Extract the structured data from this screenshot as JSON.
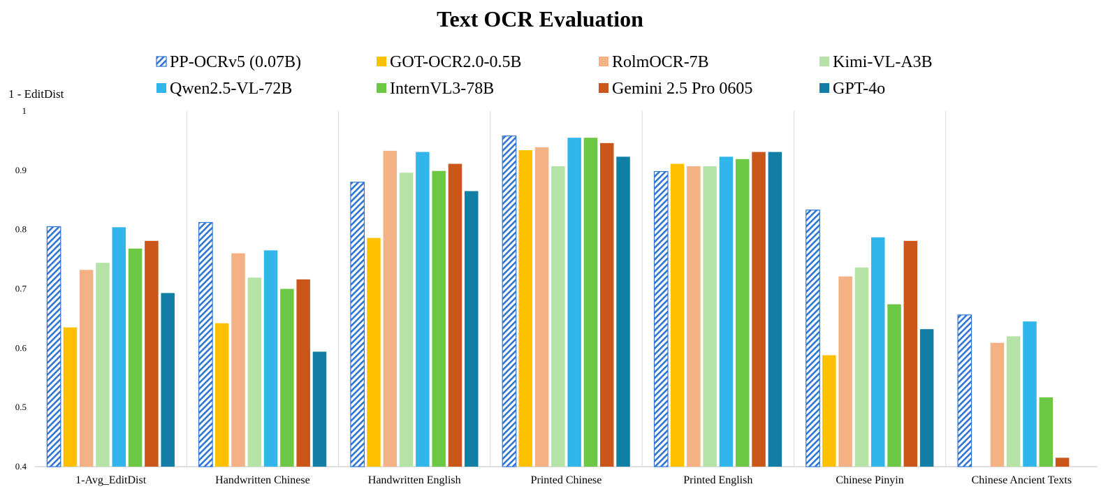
{
  "chart_data": {
    "type": "bar",
    "title": "Text OCR Evaluation",
    "ylabel": "1 - EditDist",
    "xlabel": "",
    "ylim": [
      0.4,
      1.0
    ],
    "yticks": [
      "0.4",
      "0.5",
      "0.6",
      "0.7",
      "0.8",
      "0.9",
      "1"
    ],
    "categories": [
      "1-Avg_EditDist",
      "Handwritten Chinese",
      "Handwritten English",
      "Printed Chinese",
      "Printed English",
      "Chinese Pinyin",
      "Chinese Ancient Texts"
    ],
    "legend_position": "top",
    "series": [
      {
        "name": "PP-OCRv5 (0.07B)",
        "color": "#2e75d6",
        "pattern": "hatch",
        "values": [
          0.805,
          0.812,
          0.88,
          0.958,
          0.898,
          0.833,
          0.656
        ]
      },
      {
        "name": "GOT-OCR2.0-0.5B",
        "color": "#ffc000",
        "values": [
          0.635,
          0.642,
          0.786,
          0.934,
          0.911,
          0.588,
          null
        ]
      },
      {
        "name": "RolmOCR-7B",
        "color": "#f4b183",
        "values": [
          0.732,
          0.76,
          0.933,
          0.939,
          0.907,
          0.721,
          0.609
        ]
      },
      {
        "name": "Kimi-VL-A3B",
        "color": "#b5e3a7",
        "values": [
          0.744,
          0.719,
          0.896,
          0.907,
          0.907,
          0.736,
          0.62
        ]
      },
      {
        "name": "Qwen2.5-VL-72B",
        "color": "#31b6ec",
        "values": [
          0.804,
          0.765,
          0.931,
          0.955,
          0.923,
          0.787,
          0.645
        ]
      },
      {
        "name": "InternVL3-78B",
        "color": "#6cc844",
        "values": [
          0.768,
          0.7,
          0.899,
          0.955,
          0.919,
          0.674,
          0.517
        ]
      },
      {
        "name": "Gemini 2.5 Pro 0605",
        "color": "#ca5619",
        "values": [
          0.781,
          0.716,
          0.911,
          0.946,
          0.931,
          0.781,
          0.415
        ]
      },
      {
        "name": "GPT-4o",
        "color": "#127ea6",
        "values": [
          0.693,
          0.594,
          0.865,
          0.923,
          0.931,
          0.632,
          null
        ]
      }
    ]
  }
}
